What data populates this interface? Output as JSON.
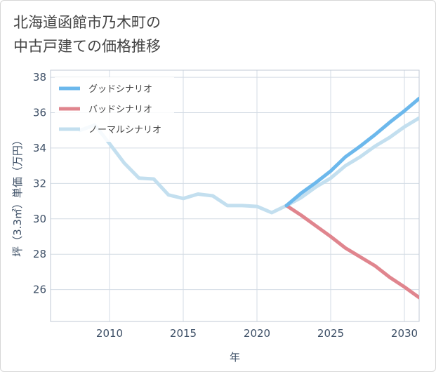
{
  "title": {
    "line1": "北海道函館市乃木町の",
    "line2": "中古戸建ての価格推移"
  },
  "chart_data": {
    "type": "line",
    "xlabel": "年",
    "ylabel": "坪（3.3㎡）単価（万円）",
    "xlim": [
      2006,
      2031
    ],
    "ylim": [
      24.2,
      38.4
    ],
    "x_ticks": [
      2010,
      2015,
      2020,
      2025,
      2030
    ],
    "y_ticks": [
      26,
      28,
      30,
      32,
      34,
      36,
      38
    ],
    "grid": true,
    "legend_position": "top-left",
    "series": [
      {
        "name": "グッドシナリオ",
        "color": "#6cb8ec",
        "x": [
          2022,
          2023,
          2024,
          2025,
          2026,
          2027,
          2028,
          2029,
          2030,
          2031
        ],
        "values": [
          30.75,
          31.45,
          32.05,
          32.7,
          33.5,
          34.1,
          34.75,
          35.45,
          36.1,
          36.8
        ]
      },
      {
        "name": "バッドシナリオ",
        "color": "#e0858e",
        "x": [
          2022,
          2023,
          2024,
          2025,
          2026,
          2027,
          2028,
          2029,
          2030,
          2031
        ],
        "values": [
          30.75,
          30.2,
          29.6,
          29.0,
          28.35,
          27.85,
          27.35,
          26.7,
          26.15,
          25.55
        ]
      },
      {
        "name": "ノーマルシナリオ",
        "color": "#c3dfef",
        "x": [
          2008,
          2009,
          2010,
          2011,
          2012,
          2013,
          2014,
          2015,
          2016,
          2017,
          2018,
          2019,
          2020,
          2021,
          2022,
          2023,
          2024,
          2025,
          2026,
          2027,
          2028,
          2029,
          2030,
          2031
        ],
        "values": [
          35.0,
          35.3,
          34.25,
          33.15,
          32.3,
          32.25,
          31.35,
          31.15,
          31.4,
          31.3,
          30.75,
          30.75,
          30.7,
          30.35,
          30.75,
          31.2,
          31.8,
          32.3,
          33.0,
          33.5,
          34.1,
          34.6,
          35.2,
          35.7
        ]
      }
    ]
  }
}
